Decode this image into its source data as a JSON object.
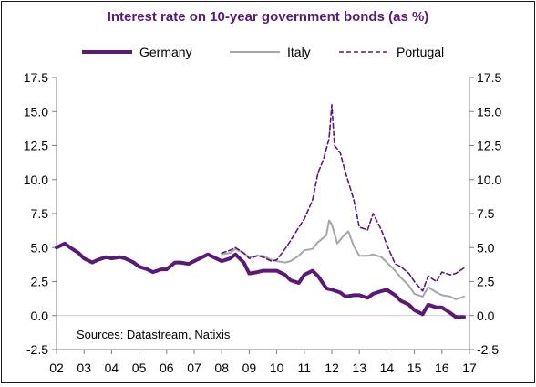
{
  "chart_data": {
    "type": "line",
    "title": "Interest rate on 10-year government bonds (as %)",
    "source_note": "Sources: Datastream, Natixis",
    "xlabel": "",
    "ylabel": "",
    "x_tick_labels": [
      "02",
      "03",
      "04",
      "05",
      "06",
      "07",
      "08",
      "09",
      "10",
      "11",
      "12",
      "13",
      "14",
      "15",
      "16",
      "17"
    ],
    "x_ticks": [
      2002,
      2003,
      2004,
      2005,
      2006,
      2007,
      2008,
      2009,
      2010,
      2011,
      2012,
      2013,
      2014,
      2015,
      2016,
      2017
    ],
    "y_tick_labels": [
      "17.5",
      "15.0",
      "12.5",
      "10.0",
      "7.5",
      "5.0",
      "2.5",
      "0.0",
      "-2.5"
    ],
    "y_ticks": [
      17.5,
      15.0,
      12.5,
      10.0,
      7.5,
      5.0,
      2.5,
      0.0,
      -2.5
    ],
    "xlim": [
      2002,
      2017
    ],
    "ylim": [
      -2.5,
      17.5
    ],
    "legend_position": "top",
    "grid": false,
    "series": [
      {
        "name": "Germany",
        "style": "solid-thick",
        "color": "#5b1a78",
        "points": [
          [
            2002.0,
            5.0
          ],
          [
            2002.3,
            5.3
          ],
          [
            2002.5,
            5.0
          ],
          [
            2002.8,
            4.6
          ],
          [
            2003.0,
            4.2
          ],
          [
            2003.3,
            3.9
          ],
          [
            2003.5,
            4.1
          ],
          [
            2003.8,
            4.3
          ],
          [
            2004.0,
            4.2
          ],
          [
            2004.3,
            4.3
          ],
          [
            2004.5,
            4.2
          ],
          [
            2004.8,
            3.9
          ],
          [
            2005.0,
            3.6
          ],
          [
            2005.3,
            3.4
          ],
          [
            2005.5,
            3.2
          ],
          [
            2005.8,
            3.4
          ],
          [
            2006.0,
            3.4
          ],
          [
            2006.3,
            3.9
          ],
          [
            2006.5,
            3.9
          ],
          [
            2006.8,
            3.8
          ],
          [
            2007.0,
            4.0
          ],
          [
            2007.3,
            4.3
          ],
          [
            2007.5,
            4.5
          ],
          [
            2007.8,
            4.2
          ],
          [
            2008.0,
            4.0
          ],
          [
            2008.3,
            4.2
          ],
          [
            2008.5,
            4.5
          ],
          [
            2008.8,
            3.9
          ],
          [
            2009.0,
            3.1
          ],
          [
            2009.3,
            3.2
          ],
          [
            2009.5,
            3.3
          ],
          [
            2009.8,
            3.3
          ],
          [
            2010.0,
            3.3
          ],
          [
            2010.3,
            3.0
          ],
          [
            2010.5,
            2.6
          ],
          [
            2010.8,
            2.4
          ],
          [
            2011.0,
            3.0
          ],
          [
            2011.3,
            3.3
          ],
          [
            2011.5,
            2.9
          ],
          [
            2011.8,
            2.0
          ],
          [
            2012.0,
            1.9
          ],
          [
            2012.3,
            1.7
          ],
          [
            2012.5,
            1.4
          ],
          [
            2012.8,
            1.5
          ],
          [
            2013.0,
            1.5
          ],
          [
            2013.3,
            1.3
          ],
          [
            2013.5,
            1.6
          ],
          [
            2013.8,
            1.8
          ],
          [
            2014.0,
            1.9
          ],
          [
            2014.3,
            1.5
          ],
          [
            2014.5,
            1.1
          ],
          [
            2014.8,
            0.8
          ],
          [
            2015.0,
            0.4
          ],
          [
            2015.3,
            0.1
          ],
          [
            2015.5,
            0.8
          ],
          [
            2015.8,
            0.6
          ],
          [
            2016.0,
            0.6
          ],
          [
            2016.3,
            0.2
          ],
          [
            2016.5,
            -0.1
          ],
          [
            2016.8,
            -0.1
          ]
        ]
      },
      {
        "name": "Italy",
        "style": "solid-thin",
        "color": "#a6a6a6",
        "points": [
          [
            2008.0,
            4.5
          ],
          [
            2008.3,
            4.6
          ],
          [
            2008.5,
            4.9
          ],
          [
            2008.8,
            4.6
          ],
          [
            2009.0,
            4.3
          ],
          [
            2009.3,
            4.4
          ],
          [
            2009.5,
            4.4
          ],
          [
            2009.8,
            4.1
          ],
          [
            2010.0,
            4.0
          ],
          [
            2010.3,
            3.9
          ],
          [
            2010.5,
            4.0
          ],
          [
            2010.8,
            4.4
          ],
          [
            2011.0,
            4.8
          ],
          [
            2011.3,
            4.9
          ],
          [
            2011.5,
            5.4
          ],
          [
            2011.8,
            5.9
          ],
          [
            2011.9,
            7.0
          ],
          [
            2012.0,
            6.7
          ],
          [
            2012.2,
            5.3
          ],
          [
            2012.4,
            5.8
          ],
          [
            2012.6,
            6.2
          ],
          [
            2012.8,
            5.1
          ],
          [
            2013.0,
            4.4
          ],
          [
            2013.3,
            4.4
          ],
          [
            2013.5,
            4.5
          ],
          [
            2013.8,
            4.3
          ],
          [
            2014.0,
            3.9
          ],
          [
            2014.3,
            3.3
          ],
          [
            2014.5,
            2.8
          ],
          [
            2014.8,
            2.2
          ],
          [
            2015.0,
            1.6
          ],
          [
            2015.3,
            1.4
          ],
          [
            2015.5,
            2.1
          ],
          [
            2015.8,
            1.7
          ],
          [
            2016.0,
            1.5
          ],
          [
            2016.3,
            1.4
          ],
          [
            2016.5,
            1.2
          ],
          [
            2016.8,
            1.4
          ]
        ]
      },
      {
        "name": "Portugal",
        "style": "dashed",
        "color": "#5b1a78",
        "points": [
          [
            2008.0,
            4.6
          ],
          [
            2008.3,
            4.8
          ],
          [
            2008.5,
            5.0
          ],
          [
            2008.8,
            4.6
          ],
          [
            2009.0,
            4.2
          ],
          [
            2009.3,
            4.4
          ],
          [
            2009.5,
            4.3
          ],
          [
            2009.8,
            4.0
          ],
          [
            2010.0,
            4.1
          ],
          [
            2010.3,
            4.9
          ],
          [
            2010.5,
            5.5
          ],
          [
            2010.8,
            6.5
          ],
          [
            2011.0,
            7.1
          ],
          [
            2011.3,
            8.5
          ],
          [
            2011.5,
            10.5
          ],
          [
            2011.7,
            11.5
          ],
          [
            2011.9,
            13.0
          ],
          [
            2012.0,
            15.5
          ],
          [
            2012.1,
            12.5
          ],
          [
            2012.3,
            12.0
          ],
          [
            2012.5,
            10.5
          ],
          [
            2012.8,
            8.5
          ],
          [
            2013.0,
            6.5
          ],
          [
            2013.3,
            6.3
          ],
          [
            2013.5,
            7.5
          ],
          [
            2013.8,
            6.3
          ],
          [
            2014.0,
            5.2
          ],
          [
            2014.3,
            3.8
          ],
          [
            2014.5,
            3.6
          ],
          [
            2014.8,
            3.1
          ],
          [
            2015.0,
            2.5
          ],
          [
            2015.3,
            1.8
          ],
          [
            2015.5,
            2.9
          ],
          [
            2015.8,
            2.5
          ],
          [
            2016.0,
            3.2
          ],
          [
            2016.3,
            3.0
          ],
          [
            2016.5,
            3.1
          ],
          [
            2016.8,
            3.5
          ]
        ]
      }
    ]
  }
}
